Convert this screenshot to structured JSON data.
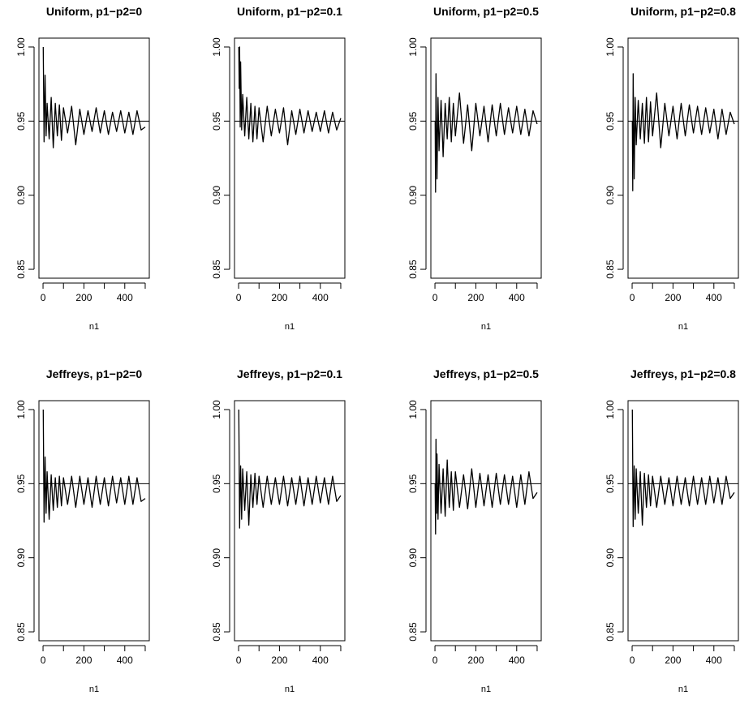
{
  "figure": {
    "background": "#ffffff",
    "line_color": "#000000"
  },
  "chart_data": [
    {
      "type": "line",
      "title": "Uniform, p1−p2=0",
      "xlabel": "n1",
      "ylabel": "",
      "xlim": [
        0,
        500
      ],
      "ylim": [
        0.85,
        1.0
      ],
      "xticks": [
        0,
        200,
        400
      ],
      "xtick_labels": [
        "0",
        "200",
        "400"
      ],
      "yticks": [
        0.85,
        0.9,
        0.95,
        1.0
      ],
      "ytick_labels": [
        "0.85",
        "0.90",
        "0.95",
        "1.00"
      ],
      "reference_line": 0.95,
      "series": [
        {
          "x": [
            1,
            5,
            10,
            15,
            20,
            30,
            40,
            50,
            60,
            70,
            80,
            90,
            100,
            120,
            140,
            160,
            180,
            200,
            220,
            240,
            260,
            280,
            300,
            320,
            340,
            360,
            380,
            400,
            420,
            440,
            460,
            480,
            500
          ],
          "y": [
            1.0,
            0.936,
            0.981,
            0.94,
            0.962,
            0.938,
            0.966,
            0.932,
            0.962,
            0.94,
            0.961,
            0.937,
            0.959,
            0.942,
            0.96,
            0.934,
            0.958,
            0.941,
            0.957,
            0.943,
            0.959,
            0.942,
            0.957,
            0.941,
            0.956,
            0.943,
            0.957,
            0.942,
            0.956,
            0.941,
            0.957,
            0.944,
            0.946
          ]
        }
      ]
    },
    {
      "type": "line",
      "title": "Uniform, p1−p2=0.1",
      "xlabel": "n1",
      "ylabel": "",
      "xlim": [
        0,
        500
      ],
      "ylim": [
        0.85,
        1.0
      ],
      "xticks": [
        0,
        200,
        400
      ],
      "xtick_labels": [
        "0",
        "200",
        "400"
      ],
      "yticks": [
        0.85,
        0.9,
        0.95,
        1.0
      ],
      "ytick_labels": [
        "0.85",
        "0.90",
        "0.95",
        "1.00"
      ],
      "reference_line": 0.95,
      "series": [
        {
          "x": [
            1,
            3,
            5,
            8,
            10,
            15,
            20,
            30,
            40,
            50,
            60,
            70,
            80,
            90,
            100,
            120,
            140,
            160,
            180,
            200,
            220,
            240,
            260,
            280,
            300,
            320,
            340,
            360,
            380,
            400,
            420,
            440,
            460,
            480,
            500
          ],
          "y": [
            1.0,
            0.972,
            1.0,
            0.946,
            0.99,
            0.944,
            0.968,
            0.94,
            0.966,
            0.938,
            0.962,
            0.936,
            0.96,
            0.938,
            0.959,
            0.936,
            0.96,
            0.94,
            0.958,
            0.942,
            0.959,
            0.934,
            0.957,
            0.941,
            0.958,
            0.942,
            0.957,
            0.943,
            0.956,
            0.943,
            0.957,
            0.942,
            0.956,
            0.944,
            0.952
          ]
        }
      ]
    },
    {
      "type": "line",
      "title": "Uniform, p1−p2=0.5",
      "xlabel": "n1",
      "ylabel": "",
      "xlim": [
        0,
        500
      ],
      "ylim": [
        0.85,
        1.0
      ],
      "xticks": [
        0,
        200,
        400
      ],
      "xtick_labels": [
        "0",
        "200",
        "400"
      ],
      "yticks": [
        0.85,
        0.9,
        0.95,
        1.0
      ],
      "ytick_labels": [
        "0.85",
        "0.90",
        "0.95",
        "1.00"
      ],
      "reference_line": 0.95,
      "series": [
        {
          "x": [
            1,
            3,
            5,
            8,
            10,
            15,
            20,
            30,
            40,
            50,
            60,
            70,
            80,
            90,
            100,
            120,
            140,
            160,
            180,
            200,
            220,
            240,
            260,
            280,
            300,
            320,
            340,
            360,
            380,
            400,
            420,
            440,
            460,
            480,
            500
          ],
          "y": [
            0.95,
            0.902,
            0.982,
            0.94,
            0.911,
            0.966,
            0.93,
            0.964,
            0.926,
            0.962,
            0.938,
            0.966,
            0.936,
            0.962,
            0.94,
            0.969,
            0.935,
            0.961,
            0.93,
            0.962,
            0.94,
            0.96,
            0.936,
            0.961,
            0.94,
            0.962,
            0.941,
            0.959,
            0.942,
            0.96,
            0.941,
            0.958,
            0.94,
            0.957,
            0.948
          ]
        }
      ]
    },
    {
      "type": "line",
      "title": "Uniform, p1−p2=0.8",
      "xlabel": "n1",
      "ylabel": "",
      "xlim": [
        0,
        500
      ],
      "ylim": [
        0.85,
        1.0
      ],
      "xticks": [
        0,
        200,
        400
      ],
      "xtick_labels": [
        "0",
        "200",
        "400"
      ],
      "yticks": [
        0.85,
        0.9,
        0.95,
        1.0
      ],
      "ytick_labels": [
        "0.85",
        "0.90",
        "0.95",
        "1.00"
      ],
      "reference_line": 0.95,
      "series": [
        {
          "x": [
            1,
            3,
            5,
            8,
            10,
            15,
            20,
            30,
            40,
            50,
            60,
            70,
            80,
            90,
            100,
            120,
            140,
            160,
            180,
            200,
            220,
            240,
            260,
            280,
            300,
            320,
            340,
            360,
            380,
            400,
            420,
            440,
            460,
            480,
            500
          ],
          "y": [
            0.95,
            0.903,
            0.982,
            0.942,
            0.911,
            0.966,
            0.934,
            0.964,
            0.938,
            0.962,
            0.935,
            0.966,
            0.936,
            0.963,
            0.94,
            0.969,
            0.932,
            0.962,
            0.94,
            0.96,
            0.938,
            0.962,
            0.94,
            0.961,
            0.942,
            0.96,
            0.941,
            0.959,
            0.942,
            0.958,
            0.938,
            0.958,
            0.941,
            0.956,
            0.948
          ]
        }
      ]
    },
    {
      "type": "line",
      "title": "Jeffreys, p1−p2=0",
      "xlabel": "n1",
      "ylabel": "",
      "xlim": [
        0,
        500
      ],
      "ylim": [
        0.85,
        1.0
      ],
      "xticks": [
        0,
        200,
        400
      ],
      "xtick_labels": [
        "0",
        "200",
        "400"
      ],
      "yticks": [
        0.85,
        0.9,
        0.95,
        1.0
      ],
      "ytick_labels": [
        "0.85",
        "0.90",
        "0.95",
        "1.00"
      ],
      "reference_line": 0.95,
      "series": [
        {
          "x": [
            1,
            5,
            10,
            15,
            20,
            30,
            40,
            50,
            60,
            70,
            80,
            90,
            100,
            120,
            140,
            160,
            180,
            200,
            220,
            240,
            260,
            280,
            300,
            320,
            340,
            360,
            380,
            400,
            420,
            440,
            460,
            480,
            500
          ],
          "y": [
            1.0,
            0.924,
            0.968,
            0.93,
            0.958,
            0.926,
            0.956,
            0.932,
            0.954,
            0.934,
            0.955,
            0.935,
            0.954,
            0.936,
            0.955,
            0.934,
            0.955,
            0.936,
            0.954,
            0.934,
            0.955,
            0.936,
            0.954,
            0.935,
            0.955,
            0.937,
            0.954,
            0.936,
            0.955,
            0.936,
            0.954,
            0.938,
            0.94
          ]
        }
      ]
    },
    {
      "type": "line",
      "title": "Jeffreys, p1−p2=0.1",
      "xlabel": "n1",
      "ylabel": "",
      "xlim": [
        0,
        500
      ],
      "ylim": [
        0.85,
        1.0
      ],
      "xticks": [
        0,
        200,
        400
      ],
      "xtick_labels": [
        "0",
        "200",
        "400"
      ],
      "yticks": [
        0.85,
        0.9,
        0.95,
        1.0
      ],
      "ytick_labels": [
        "0.85",
        "0.90",
        "0.95",
        "1.00"
      ],
      "reference_line": 0.95,
      "series": [
        {
          "x": [
            1,
            5,
            10,
            15,
            20,
            30,
            40,
            50,
            60,
            70,
            80,
            90,
            100,
            120,
            140,
            160,
            180,
            200,
            220,
            240,
            260,
            280,
            300,
            320,
            340,
            360,
            380,
            400,
            420,
            440,
            460,
            480,
            500
          ],
          "y": [
            1.0,
            0.92,
            0.962,
            0.926,
            0.96,
            0.932,
            0.958,
            0.922,
            0.956,
            0.934,
            0.957,
            0.936,
            0.955,
            0.934,
            0.955,
            0.936,
            0.954,
            0.936,
            0.955,
            0.935,
            0.954,
            0.936,
            0.955,
            0.935,
            0.954,
            0.936,
            0.955,
            0.937,
            0.954,
            0.936,
            0.955,
            0.938,
            0.942
          ]
        }
      ]
    },
    {
      "type": "line",
      "title": "Jeffreys, p1−p2=0.5",
      "xlabel": "n1",
      "ylabel": "",
      "xlim": [
        0,
        500
      ],
      "ylim": [
        0.85,
        1.0
      ],
      "xticks": [
        0,
        200,
        400
      ],
      "xtick_labels": [
        "0",
        "200",
        "400"
      ],
      "yticks": [
        0.85,
        0.9,
        0.95,
        1.0
      ],
      "ytick_labels": [
        "0.85",
        "0.90",
        "0.95",
        "1.00"
      ],
      "reference_line": 0.95,
      "series": [
        {
          "x": [
            1,
            3,
            5,
            8,
            10,
            15,
            20,
            30,
            40,
            50,
            60,
            70,
            80,
            90,
            100,
            120,
            140,
            160,
            180,
            200,
            220,
            240,
            260,
            280,
            300,
            320,
            340,
            360,
            380,
            400,
            420,
            440,
            460,
            480,
            500
          ],
          "y": [
            0.95,
            0.916,
            0.98,
            0.93,
            0.97,
            0.926,
            0.963,
            0.93,
            0.96,
            0.928,
            0.966,
            0.934,
            0.958,
            0.932,
            0.958,
            0.934,
            0.956,
            0.933,
            0.96,
            0.934,
            0.957,
            0.935,
            0.956,
            0.934,
            0.957,
            0.936,
            0.956,
            0.936,
            0.955,
            0.934,
            0.956,
            0.936,
            0.958,
            0.94,
            0.944
          ]
        }
      ]
    },
    {
      "type": "line",
      "title": "Jeffreys, p1−p2=0.8",
      "xlabel": "n1",
      "ylabel": "",
      "xlim": [
        0,
        500
      ],
      "ylim": [
        0.85,
        1.0
      ],
      "xticks": [
        0,
        200,
        400
      ],
      "xtick_labels": [
        "0",
        "200",
        "400"
      ],
      "yticks": [
        0.85,
        0.9,
        0.95,
        1.0
      ],
      "ytick_labels": [
        "0.85",
        "0.90",
        "0.95",
        "1.00"
      ],
      "reference_line": 0.95,
      "series": [
        {
          "x": [
            1,
            5,
            10,
            15,
            20,
            30,
            40,
            50,
            60,
            70,
            80,
            90,
            100,
            120,
            140,
            160,
            180,
            200,
            220,
            240,
            260,
            280,
            300,
            320,
            340,
            360,
            380,
            400,
            420,
            440,
            460,
            480,
            500
          ],
          "y": [
            1.0,
            0.921,
            0.962,
            0.926,
            0.96,
            0.93,
            0.958,
            0.922,
            0.957,
            0.934,
            0.956,
            0.935,
            0.955,
            0.934,
            0.955,
            0.936,
            0.954,
            0.935,
            0.955,
            0.936,
            0.954,
            0.935,
            0.955,
            0.936,
            0.954,
            0.936,
            0.955,
            0.937,
            0.954,
            0.936,
            0.955,
            0.94,
            0.944
          ]
        }
      ]
    }
  ]
}
